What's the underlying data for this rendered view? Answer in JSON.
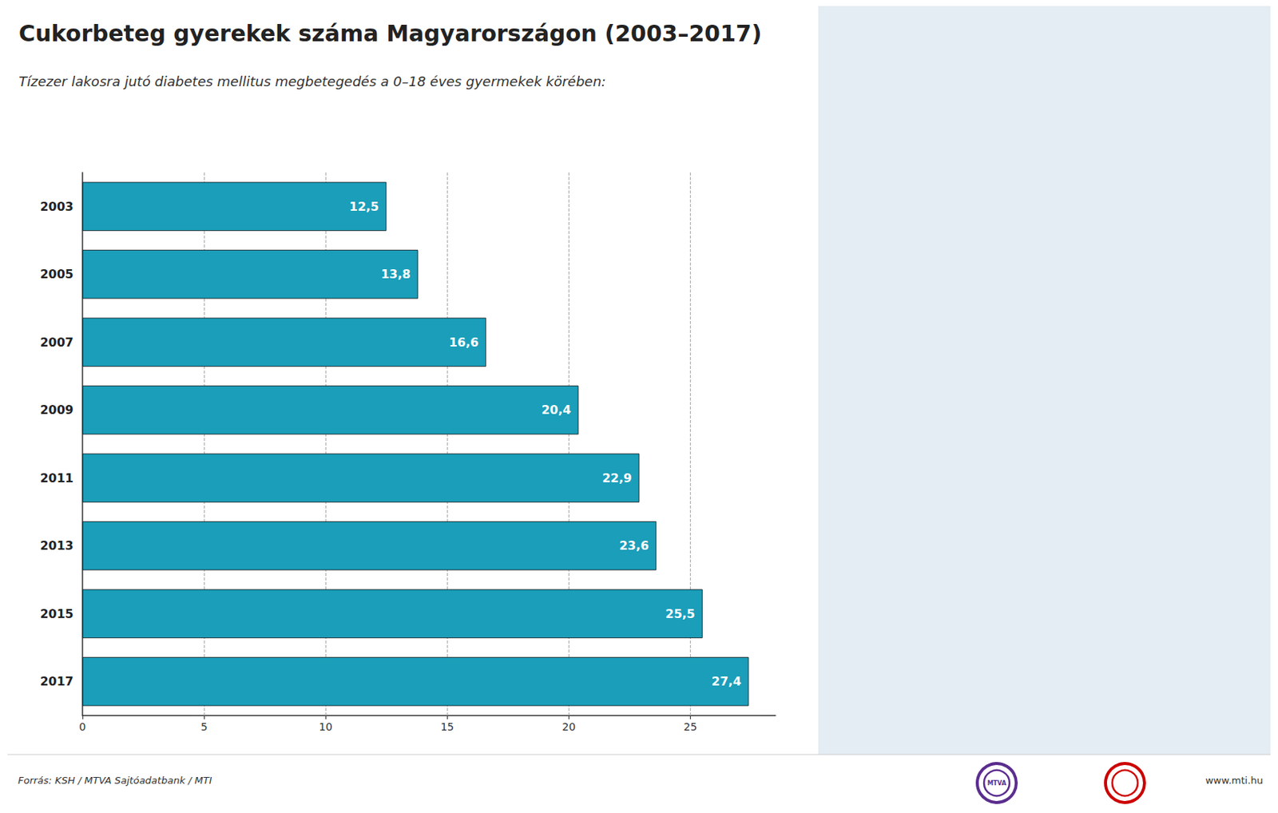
{
  "chart_data": {
    "type": "bar",
    "orientation": "horizontal",
    "title": "Cukorbeteg gyerekek száma Magyarországon (2003–2017)",
    "subtitle": "Tízezer lakosra jutó diabetes mellitus megbetegedés a 0–18 éves gyermekek körében:",
    "categories": [
      "2003",
      "2005",
      "2007",
      "2009",
      "2011",
      "2013",
      "2015",
      "2017"
    ],
    "values": [
      12.5,
      13.8,
      16.6,
      20.4,
      22.9,
      23.6,
      25.5,
      27.4
    ],
    "value_labels": [
      "12,5",
      "13,8",
      "16,6",
      "20,4",
      "22,9",
      "23,6",
      "25,5",
      "27,4"
    ],
    "data_labels": true,
    "color": "#1a9eba",
    "xlim": [
      0,
      28.5
    ],
    "xticks": [
      0,
      5,
      10,
      15,
      20,
      25
    ],
    "grid": true,
    "annotations": [
      "Forrás: KSH / MTVA Sajtóadatbank / MTI",
      "MTVA",
      "www.mti.hu"
    ]
  }
}
